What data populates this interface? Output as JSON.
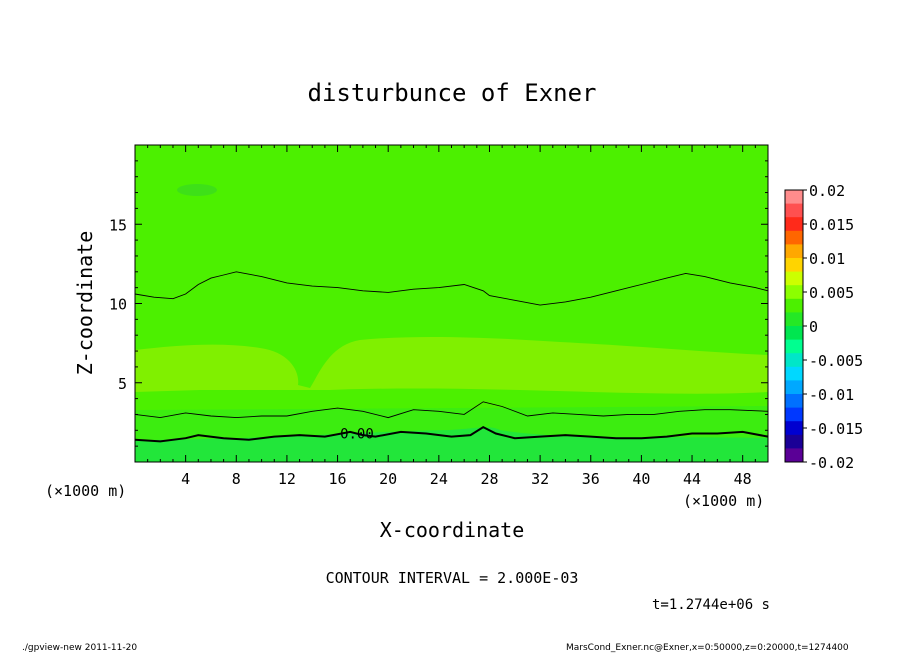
{
  "chart_data": {
    "type": "heatmap",
    "title": "disturbunce of Exner",
    "xlabel": "X-coordinate",
    "ylabel": "Z-coordinate",
    "x_unit": "(×1000 m)",
    "z_unit": "(×1000 m)",
    "xlim": [
      0,
      50
    ],
    "ylim": [
      0,
      20
    ],
    "x_ticks": [
      "4",
      "8",
      "12",
      "16",
      "20",
      "24",
      "28",
      "32",
      "36",
      "40",
      "44",
      "48"
    ],
    "y_ticks": [
      "5",
      "10",
      "15"
    ],
    "colorbar": {
      "labels": [
        "0.02",
        "0.015",
        "0.01",
        "0.005",
        "0",
        "-0.005",
        "-0.01",
        "-0.015",
        "-0.02"
      ],
      "levels": [
        0.02,
        0.015,
        0.01,
        0.005,
        0,
        -0.005,
        -0.01,
        -0.015,
        -0.02
      ],
      "colors": [
        "#ff8c8c",
        "#ff5050",
        "#ff2a1a",
        "#ff6600",
        "#ffa800",
        "#ffd400",
        "#ccff00",
        "#8cff00",
        "#4cf000",
        "#25e825",
        "#00e650",
        "#00ff90",
        "#00e6c8",
        "#00d8ff",
        "#00a8ff",
        "#0070ff",
        "#0038ff",
        "#0000d0",
        "#1a0096",
        "#5a0096"
      ]
    },
    "contours": [
      {
        "label": "0.00",
        "points": [
          [
            0,
            1.4
          ],
          [
            2,
            1.3
          ],
          [
            4,
            1.5
          ],
          [
            5,
            1.7
          ],
          [
            7,
            1.5
          ],
          [
            9,
            1.4
          ],
          [
            11,
            1.6
          ],
          [
            13,
            1.7
          ],
          [
            15,
            1.6
          ],
          [
            17,
            1.9
          ],
          [
            18,
            1.7
          ],
          [
            19,
            1.6
          ],
          [
            21,
            1.9
          ],
          [
            23,
            1.8
          ],
          [
            25,
            1.6
          ],
          [
            26.5,
            1.7
          ],
          [
            27.5,
            2.2
          ],
          [
            28.5,
            1.8
          ],
          [
            30,
            1.5
          ],
          [
            32,
            1.6
          ],
          [
            34,
            1.7
          ],
          [
            36,
            1.6
          ],
          [
            38,
            1.5
          ],
          [
            40,
            1.5
          ],
          [
            42,
            1.6
          ],
          [
            44,
            1.8
          ],
          [
            46,
            1.8
          ],
          [
            48,
            1.9
          ],
          [
            50,
            1.6
          ]
        ]
      },
      {
        "label": "",
        "points": [
          [
            0,
            3.0
          ],
          [
            2,
            2.8
          ],
          [
            4,
            3.1
          ],
          [
            6,
            2.9
          ],
          [
            8,
            2.8
          ],
          [
            10,
            2.9
          ],
          [
            12,
            2.9
          ],
          [
            14,
            3.2
          ],
          [
            16,
            3.4
          ],
          [
            18,
            3.2
          ],
          [
            20,
            2.8
          ],
          [
            22,
            3.3
          ],
          [
            24,
            3.2
          ],
          [
            26,
            3.0
          ],
          [
            27.5,
            3.8
          ],
          [
            29,
            3.5
          ],
          [
            31,
            2.9
          ],
          [
            33,
            3.1
          ],
          [
            35,
            3.0
          ],
          [
            37,
            2.9
          ],
          [
            39,
            3.0
          ],
          [
            41,
            3.0
          ],
          [
            43,
            3.2
          ],
          [
            45,
            3.3
          ],
          [
            47,
            3.3
          ],
          [
            50,
            3.2
          ]
        ]
      },
      {
        "label": "",
        "points": [
          [
            0,
            10.6
          ],
          [
            1.5,
            10.4
          ],
          [
            3,
            10.3
          ],
          [
            4,
            10.6
          ],
          [
            5,
            11.2
          ],
          [
            6,
            11.6
          ],
          [
            7,
            11.8
          ],
          [
            8,
            12.0
          ],
          [
            10,
            11.7
          ],
          [
            12,
            11.3
          ],
          [
            14,
            11.1
          ],
          [
            16,
            11.0
          ],
          [
            18,
            10.8
          ],
          [
            20,
            10.7
          ],
          [
            22,
            10.9
          ],
          [
            24,
            11.0
          ],
          [
            26,
            11.2
          ],
          [
            27.5,
            10.8
          ],
          [
            28,
            10.5
          ],
          [
            30,
            10.2
          ],
          [
            32,
            9.9
          ],
          [
            34,
            10.1
          ],
          [
            36,
            10.4
          ],
          [
            38,
            10.8
          ],
          [
            40,
            11.2
          ],
          [
            42,
            11.6
          ],
          [
            43.5,
            11.9
          ],
          [
            45,
            11.7
          ],
          [
            47,
            11.3
          ],
          [
            49,
            11.0
          ],
          [
            50,
            10.8
          ]
        ]
      }
    ],
    "annotations": [
      "CONTOUR INTERVAL = 2.000E-03",
      "t=1.2744e+06 s"
    ]
  },
  "footer": {
    "left": "./gpview-new   2011-11-20",
    "right": "MarsCond_Exner.nc@Exner,x=0:50000,z=0:20000,t=1274400"
  }
}
